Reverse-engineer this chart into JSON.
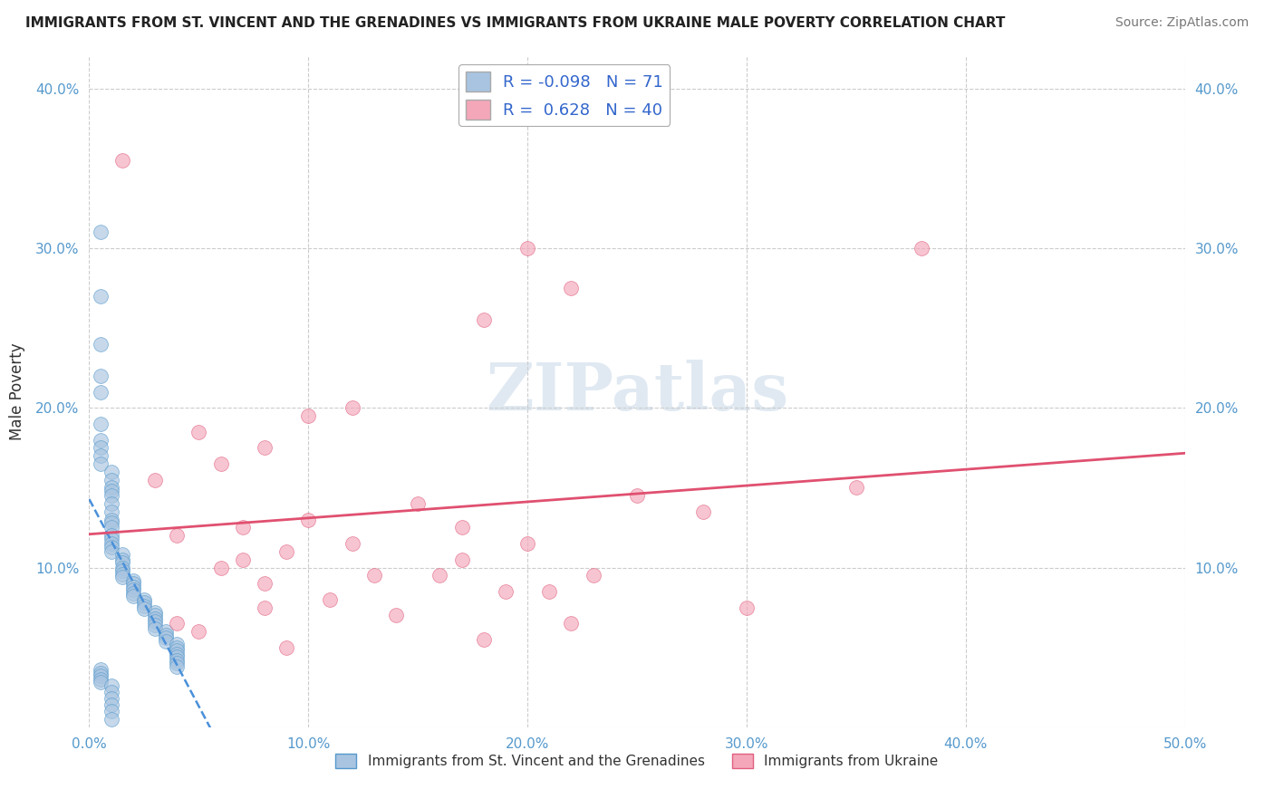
{
  "title": "IMMIGRANTS FROM ST. VINCENT AND THE GRENADINES VS IMMIGRANTS FROM UKRAINE MALE POVERTY CORRELATION CHART",
  "source": "Source: ZipAtlas.com",
  "ylabel": "Male Poverty",
  "xlim": [
    0.0,
    0.5
  ],
  "ylim": [
    0.0,
    0.42
  ],
  "xticks": [
    0.0,
    0.1,
    0.2,
    0.3,
    0.4,
    0.5
  ],
  "yticks": [
    0.0,
    0.1,
    0.2,
    0.3,
    0.4
  ],
  "xtick_labels": [
    "0.0%",
    "10.0%",
    "20.0%",
    "30.0%",
    "40.0%",
    "50.0%"
  ],
  "ytick_labels": [
    "",
    "10.0%",
    "20.0%",
    "30.0%",
    "40.0%"
  ],
  "color_blue": "#a8c4e0",
  "color_pink": "#f4a7b9",
  "edge_blue": "#5599cc",
  "edge_pink": "#e06080",
  "line_blue": "#4a90d9",
  "line_pink": "#e05070",
  "R_blue": -0.098,
  "N_blue": 71,
  "R_pink": 0.628,
  "N_pink": 40,
  "legend_label_blue": "Immigrants from St. Vincent and the Grenadines",
  "legend_label_pink": "Immigrants from Ukraine",
  "blue_x": [
    0.005,
    0.005,
    0.005,
    0.005,
    0.005,
    0.005,
    0.005,
    0.005,
    0.005,
    0.005,
    0.01,
    0.01,
    0.01,
    0.01,
    0.01,
    0.01,
    0.01,
    0.01,
    0.01,
    0.01,
    0.01,
    0.01,
    0.01,
    0.01,
    0.01,
    0.015,
    0.015,
    0.015,
    0.015,
    0.015,
    0.015,
    0.015,
    0.02,
    0.02,
    0.02,
    0.02,
    0.02,
    0.02,
    0.025,
    0.025,
    0.025,
    0.025,
    0.03,
    0.03,
    0.03,
    0.03,
    0.03,
    0.03,
    0.035,
    0.035,
    0.035,
    0.035,
    0.04,
    0.04,
    0.04,
    0.04,
    0.04,
    0.04,
    0.04,
    0.04,
    0.005,
    0.005,
    0.005,
    0.005,
    0.005,
    0.01,
    0.01,
    0.01,
    0.01,
    0.01,
    0.01
  ],
  "blue_y": [
    0.31,
    0.27,
    0.24,
    0.22,
    0.21,
    0.19,
    0.18,
    0.175,
    0.17,
    0.165,
    0.16,
    0.155,
    0.15,
    0.148,
    0.145,
    0.14,
    0.135,
    0.13,
    0.128,
    0.125,
    0.12,
    0.118,
    0.115,
    0.113,
    0.11,
    0.108,
    0.105,
    0.103,
    0.1,
    0.098,
    0.096,
    0.094,
    0.092,
    0.09,
    0.088,
    0.086,
    0.084,
    0.082,
    0.08,
    0.078,
    0.076,
    0.074,
    0.072,
    0.07,
    0.068,
    0.066,
    0.064,
    0.062,
    0.06,
    0.058,
    0.056,
    0.054,
    0.052,
    0.05,
    0.048,
    0.046,
    0.044,
    0.042,
    0.04,
    0.038,
    0.036,
    0.034,
    0.032,
    0.03,
    0.028,
    0.026,
    0.022,
    0.018,
    0.014,
    0.01,
    0.005
  ],
  "pink_x": [
    0.015,
    0.2,
    0.22,
    0.18,
    0.12,
    0.1,
    0.05,
    0.08,
    0.06,
    0.03,
    0.25,
    0.15,
    0.28,
    0.1,
    0.07,
    0.04,
    0.2,
    0.09,
    0.17,
    0.06,
    0.13,
    0.08,
    0.19,
    0.11,
    0.3,
    0.14,
    0.22,
    0.05,
    0.18,
    0.09,
    0.12,
    0.07,
    0.16,
    0.21,
    0.08,
    0.04,
    0.35,
    0.17,
    0.23,
    0.38
  ],
  "pink_y": [
    0.355,
    0.3,
    0.275,
    0.255,
    0.2,
    0.195,
    0.185,
    0.175,
    0.165,
    0.155,
    0.145,
    0.14,
    0.135,
    0.13,
    0.125,
    0.12,
    0.115,
    0.11,
    0.105,
    0.1,
    0.095,
    0.09,
    0.085,
    0.08,
    0.075,
    0.07,
    0.065,
    0.06,
    0.055,
    0.05,
    0.115,
    0.105,
    0.095,
    0.085,
    0.075,
    0.065,
    0.15,
    0.125,
    0.095,
    0.3
  ]
}
